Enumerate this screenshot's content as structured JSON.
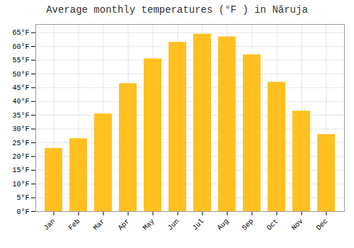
{
  "chart_data": {
    "type": "bar",
    "title": "Average monthly temperatures (°F ) in Năruja",
    "categories": [
      "Jan",
      "Feb",
      "Mar",
      "Apr",
      "May",
      "Jun",
      "Jul",
      "Aug",
      "Sep",
      "Oct",
      "Nov",
      "Dec"
    ],
    "values": [
      23,
      26.5,
      35.5,
      46.5,
      55.5,
      61.5,
      64.5,
      63.5,
      57,
      47,
      36.5,
      28
    ],
    "color": "#FFC020",
    "ylim": [
      0,
      68
    ],
    "yticks": [
      {
        "value": 0,
        "label": "0°F"
      },
      {
        "value": 5,
        "label": "5°F"
      },
      {
        "value": 10,
        "label": "10°F"
      },
      {
        "value": 15,
        "label": "15°F"
      },
      {
        "value": 20,
        "label": "20°F"
      },
      {
        "value": 25,
        "label": "25°F"
      },
      {
        "value": 30,
        "label": "30°F"
      },
      {
        "value": 35,
        "label": "35°F"
      },
      {
        "value": 40,
        "label": "40°F"
      },
      {
        "value": 45,
        "label": "45°F"
      },
      {
        "value": 50,
        "label": "50°F"
      },
      {
        "value": 55,
        "label": "55°F"
      },
      {
        "value": 60,
        "label": "60°F"
      },
      {
        "value": 65,
        "label": "65°F"
      }
    ],
    "grid": true
  }
}
